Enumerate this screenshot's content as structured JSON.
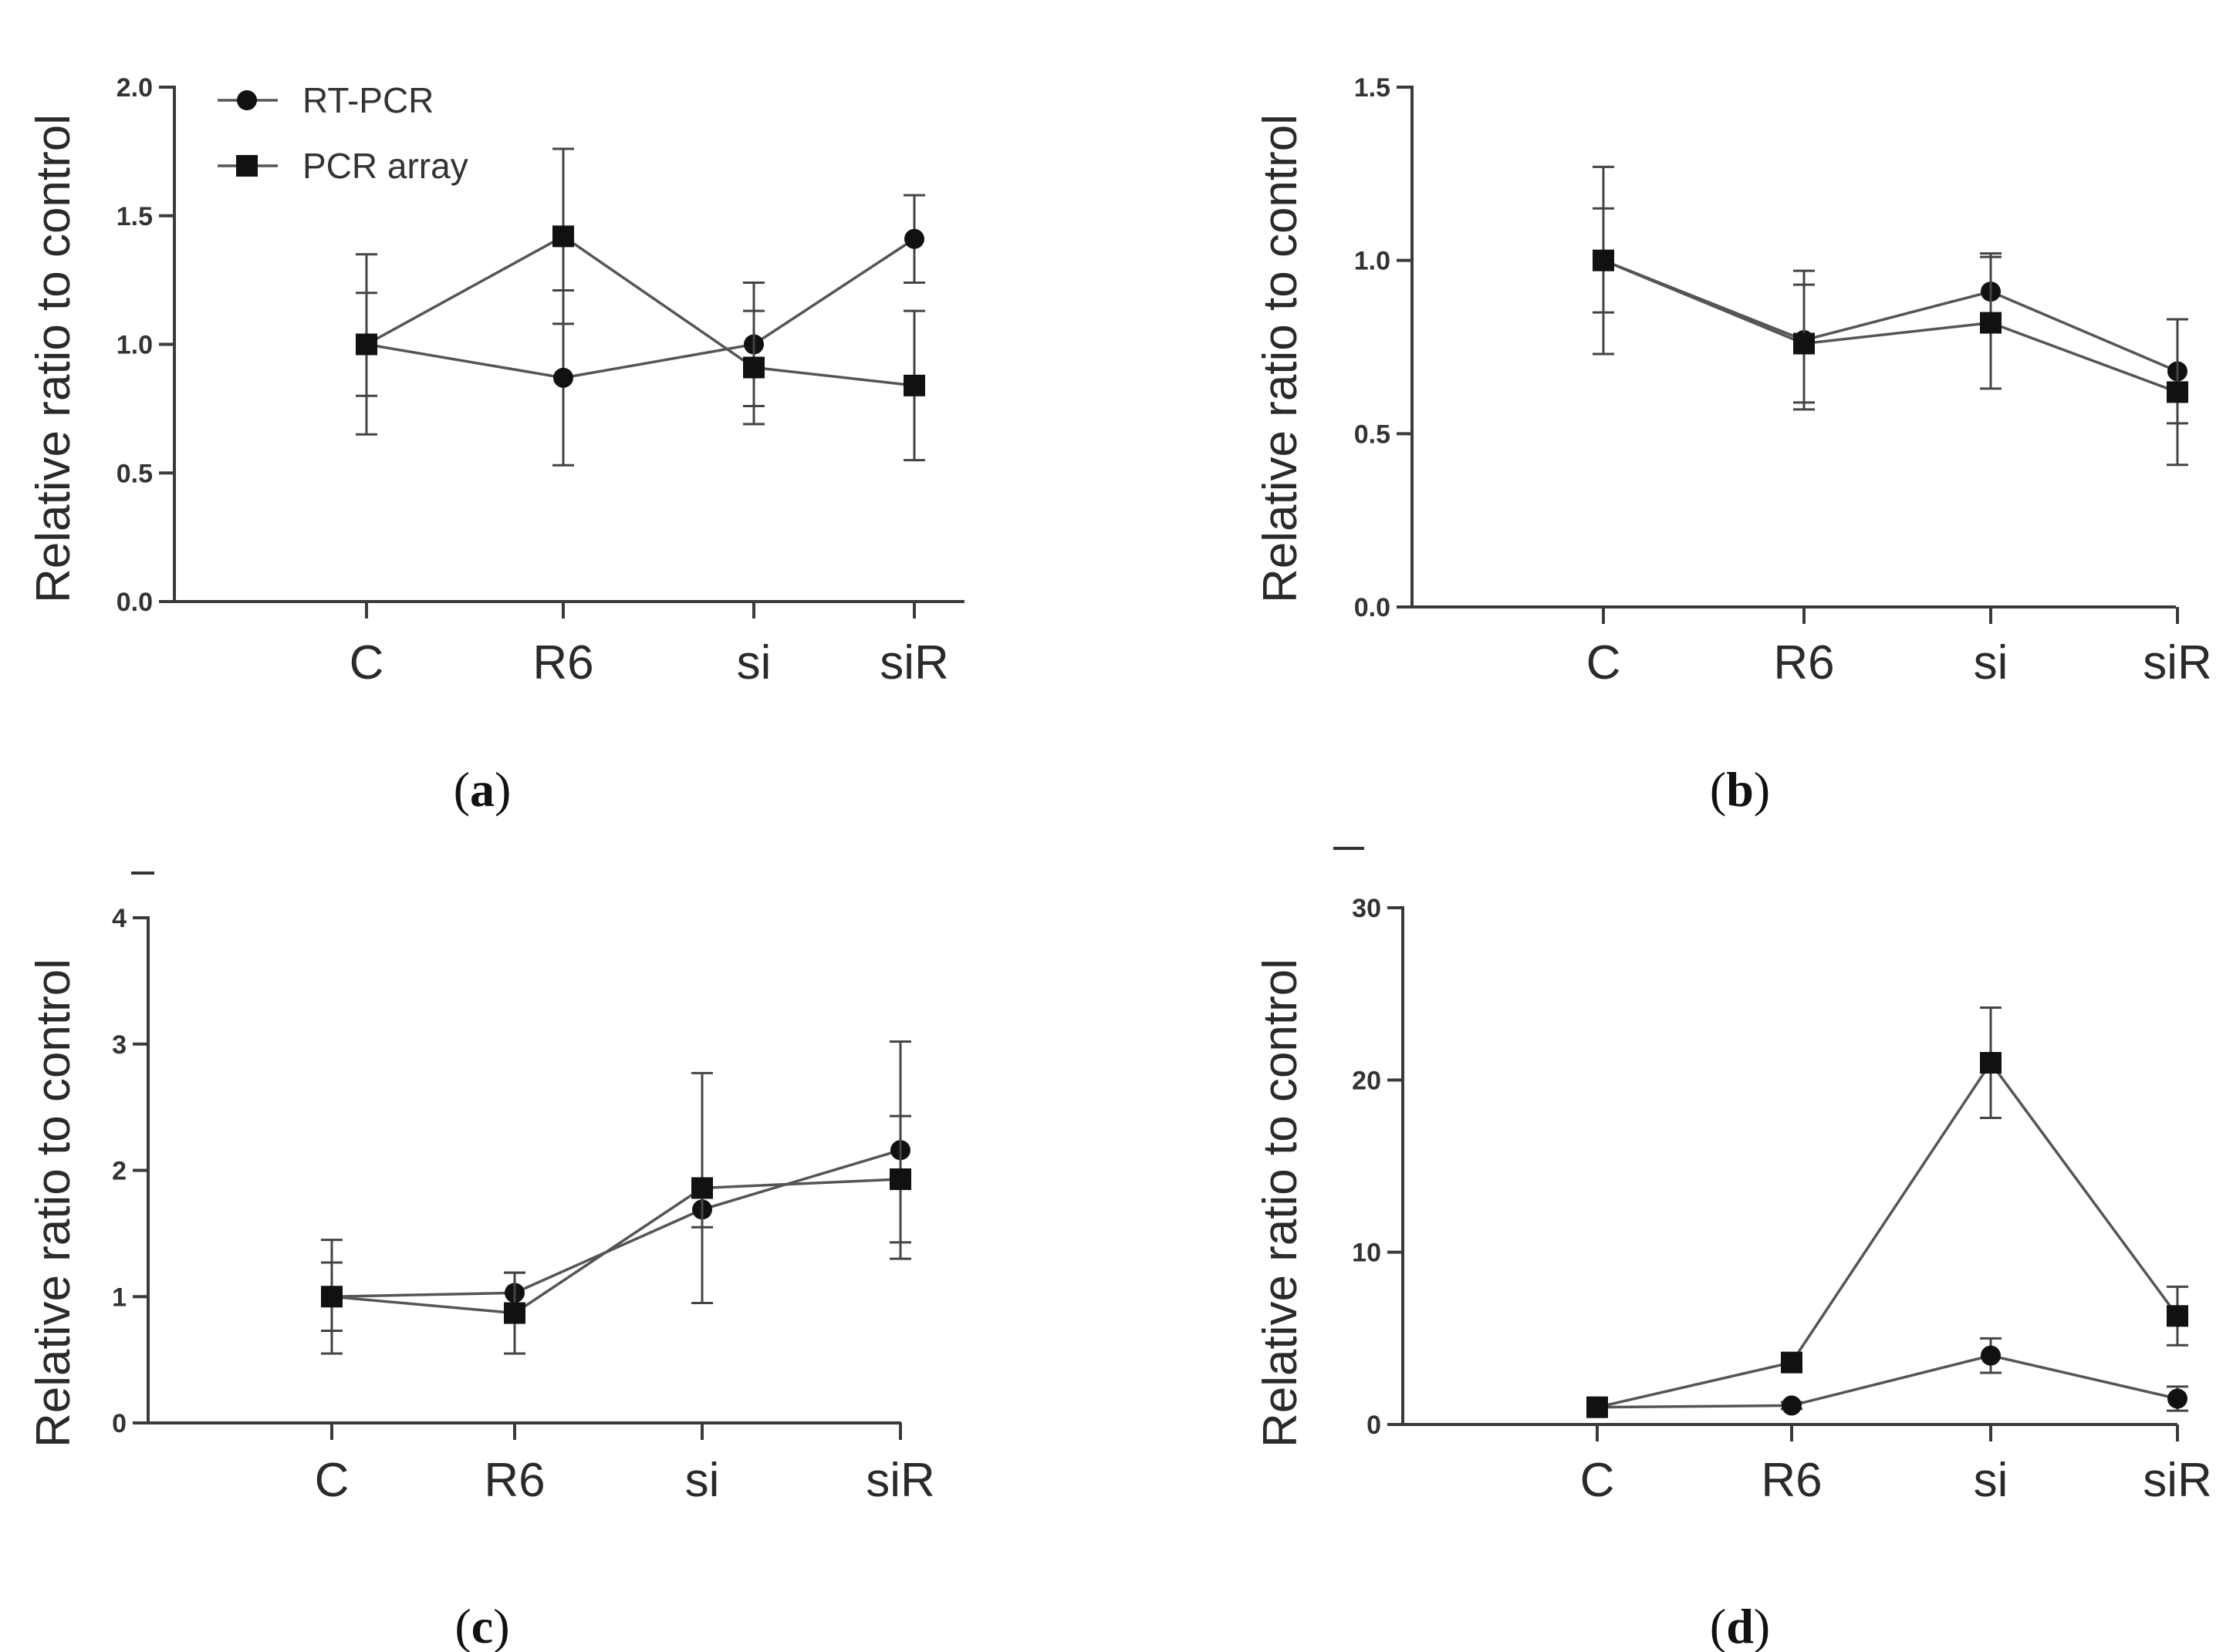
{
  "legend": {
    "items": [
      {
        "label": "RT-PCR",
        "marker": "circle"
      },
      {
        "label": "PCR array",
        "marker": "square"
      }
    ]
  },
  "chart_data": [
    {
      "type": "line",
      "panel_label": "a",
      "ylabel": "Relative ratio to control",
      "categories": [
        "C",
        "R6",
        "si",
        "siR"
      ],
      "ylim": [
        0,
        2.0
      ],
      "yticks": [
        "0.0",
        "0.5",
        "1.0",
        "1.5",
        "2.0"
      ],
      "ytick_values": [
        0,
        0.5,
        1.0,
        1.5,
        2.0
      ],
      "legend_position": "top-left",
      "series": [
        {
          "name": "RT-PCR",
          "marker": "circle",
          "values": [
            1.0,
            0.87,
            1.0,
            1.41
          ],
          "err": [
            0.2,
            0.34,
            0.24,
            0.17
          ]
        },
        {
          "name": "PCR array",
          "marker": "square",
          "values": [
            1.0,
            1.42,
            0.91,
            0.84
          ],
          "err": [
            0.35,
            0.34,
            0.22,
            0.29
          ]
        }
      ]
    },
    {
      "type": "line",
      "panel_label": "b",
      "ylabel": "Relative ratio to control",
      "categories": [
        "C",
        "R6",
        "si",
        "siR"
      ],
      "ylim": [
        0,
        1.5
      ],
      "yticks": [
        "0.0",
        "0.5",
        "1.0",
        "1.5"
      ],
      "ytick_values": [
        0,
        0.5,
        1.0,
        1.5
      ],
      "series": [
        {
          "name": "RT-PCR",
          "marker": "circle",
          "values": [
            1.0,
            0.77,
            0.91,
            0.68
          ],
          "err": [
            0.15,
            0.2,
            0.11,
            0.15
          ]
        },
        {
          "name": "PCR array",
          "marker": "square",
          "values": [
            1.0,
            0.76,
            0.82,
            0.62
          ],
          "err": [
            0.27,
            0.17,
            0.19,
            0.21
          ]
        }
      ]
    },
    {
      "type": "line",
      "panel_label": "c",
      "ylabel": "Relative ratio to control",
      "categories": [
        "C",
        "R6",
        "si",
        "siR"
      ],
      "ylim": [
        0,
        4
      ],
      "yticks": [
        "0",
        "1",
        "2",
        "3",
        "4"
      ],
      "ytick_values": [
        0,
        1,
        2,
        3,
        4
      ],
      "series": [
        {
          "name": "RT-PCR",
          "marker": "circle",
          "values": [
            1.0,
            1.03,
            1.69,
            2.16
          ],
          "err": [
            0.27,
            0.16,
            0.14,
            0.86
          ]
        },
        {
          "name": "PCR array",
          "marker": "square",
          "values": [
            1.0,
            0.87,
            1.86,
            1.93
          ],
          "err": [
            0.45,
            0.32,
            0.91,
            0.5
          ]
        }
      ]
    },
    {
      "type": "line",
      "panel_label": "d",
      "ylabel": "Relative ratio to control",
      "categories": [
        "C",
        "R6",
        "si",
        "siR"
      ],
      "ylim": [
        0,
        30
      ],
      "yticks": [
        "0",
        "10",
        "20",
        "30"
      ],
      "ytick_values": [
        0,
        10,
        20,
        30
      ],
      "series": [
        {
          "name": "RT-PCR",
          "marker": "circle",
          "values": [
            1.0,
            1.1,
            4.0,
            1.5
          ],
          "err": [
            0.2,
            0.2,
            1.0,
            0.7
          ]
        },
        {
          "name": "PCR array",
          "marker": "square",
          "values": [
            1.0,
            3.6,
            21.0,
            6.3
          ],
          "err": [
            0.3,
            0.4,
            3.2,
            1.7
          ]
        }
      ]
    }
  ]
}
